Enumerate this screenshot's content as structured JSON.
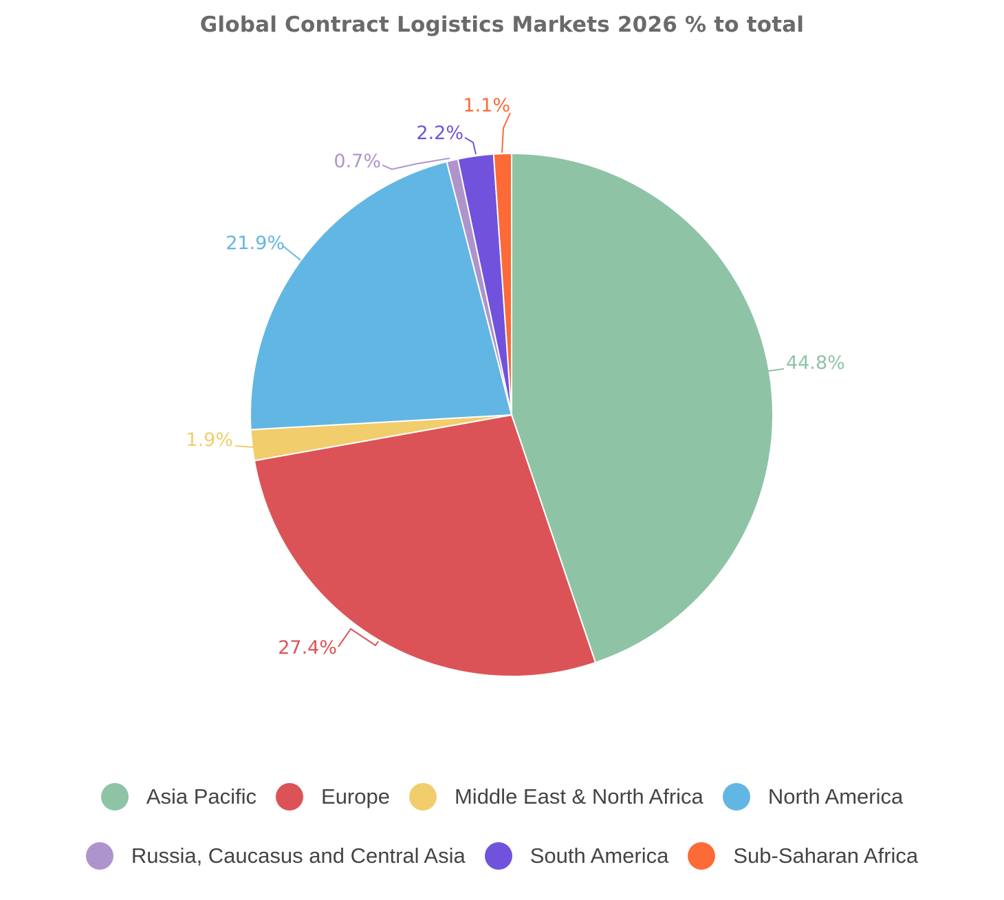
{
  "chart_data": {
    "type": "pie",
    "title": "Global Contract Logistics Markets 2026 % to total",
    "start_angle_deg": 0,
    "direction": "clockwise",
    "legend_position": "bottom",
    "slices": [
      {
        "name": "Asia Pacific",
        "value": 44.8,
        "label": "44.8%",
        "color": "#8fc3a6"
      },
      {
        "name": "Europe",
        "value": 27.4,
        "label": "27.4%",
        "color": "#dc5357"
      },
      {
        "name": "Middle East & North Africa",
        "value": 1.9,
        "label": "1.9%",
        "color": "#f1cd6b"
      },
      {
        "name": "North America",
        "value": 21.9,
        "label": "21.9%",
        "color": "#62b6e3"
      },
      {
        "name": "Russia, Caucasus and Central Asia",
        "value": 0.7,
        "label": "0.7%",
        "color": "#ae94cc"
      },
      {
        "name": "South America",
        "value": 2.2,
        "label": "2.2%",
        "color": "#7052dc"
      },
      {
        "name": "Sub-Saharan Africa",
        "value": 1.1,
        "label": "1.1%",
        "color": "#fc6a37"
      }
    ]
  }
}
